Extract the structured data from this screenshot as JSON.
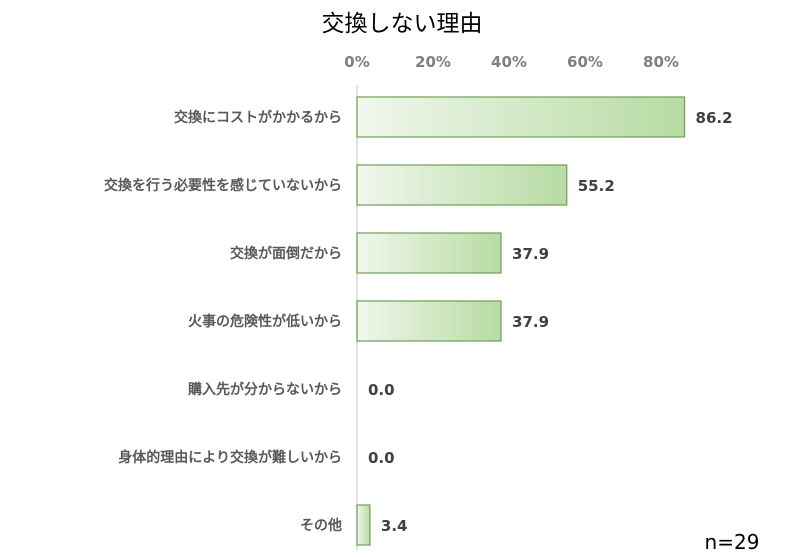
{
  "chart_data": {
    "type": "bar",
    "orientation": "horizontal",
    "title": "交換しない理由",
    "note": "n=29",
    "xlim": [
      0,
      85
    ],
    "ticks": [
      "0%",
      "20%",
      "40%",
      "60%",
      "80%"
    ],
    "tick_values": [
      0,
      20,
      40,
      60,
      80
    ],
    "categories": [
      "交換にコストがかかるから",
      "交換を行う必要性を感じていないから",
      "交換が面倒だから",
      "火事の危険性が低いから",
      "購入先が分からないから",
      "身体的理由により交換が難しいから",
      "その他"
    ],
    "values": [
      86.2,
      55.2,
      37.9,
      37.9,
      0.0,
      0.0,
      3.4
    ],
    "labels": [
      "86.2",
      "55.2",
      "37.9",
      "37.9",
      "0.0",
      "0.0",
      "3.4"
    ],
    "colors": {
      "bar_start": "#f0f7ec",
      "bar_end": "#b7dba3",
      "bar_border": "#6f9e55",
      "axis": "#d9d9d9"
    }
  }
}
